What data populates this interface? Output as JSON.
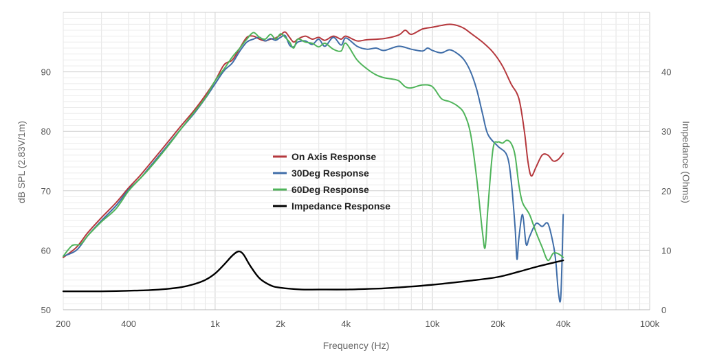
{
  "chart_data": {
    "type": "line",
    "title": "",
    "xlabel": "Frequency (Hz)",
    "ylabel": "dB SPL (2.83V/1m)",
    "y2label": "Impedance (Ohms)",
    "x_scale": "log",
    "xlim": [
      200,
      100000
    ],
    "ylim": [
      50,
      100
    ],
    "y2lim": [
      0,
      50
    ],
    "grid": true,
    "legend_position": "center-left",
    "x_ticks": [
      {
        "value": 200,
        "label": "200"
      },
      {
        "value": 400,
        "label": "400"
      },
      {
        "value": 1000,
        "label": "1k"
      },
      {
        "value": 2000,
        "label": "2k"
      },
      {
        "value": 4000,
        "label": "4k"
      },
      {
        "value": 10000,
        "label": "10k"
      },
      {
        "value": 20000,
        "label": "20k"
      },
      {
        "value": 40000,
        "label": "40k"
      },
      {
        "value": 100000,
        "label": "100k"
      }
    ],
    "y_ticks": [
      {
        "value": 50,
        "label": "50"
      },
      {
        "value": 60,
        "label": "60"
      },
      {
        "value": 70,
        "label": "70"
      },
      {
        "value": 80,
        "label": "80"
      },
      {
        "value": 90,
        "label": "90"
      }
    ],
    "y2_ticks": [
      {
        "value": 0,
        "label": "0"
      },
      {
        "value": 10,
        "label": "10"
      },
      {
        "value": 20,
        "label": "20"
      },
      {
        "value": 30,
        "label": "30"
      },
      {
        "value": 40,
        "label": "40"
      }
    ],
    "series": [
      {
        "name": "On Axis Response",
        "color": "#b5383d",
        "axis": "left",
        "points": [
          [
            200,
            58.8
          ],
          [
            230,
            60.5
          ],
          [
            260,
            63
          ],
          [
            300,
            65.5
          ],
          [
            350,
            68
          ],
          [
            400,
            70.5
          ],
          [
            450,
            72.5
          ],
          [
            500,
            74.5
          ],
          [
            600,
            78
          ],
          [
            700,
            81
          ],
          [
            800,
            83.5
          ],
          [
            900,
            86
          ],
          [
            1000,
            88.5
          ],
          [
            1100,
            91.2
          ],
          [
            1200,
            92
          ],
          [
            1300,
            94
          ],
          [
            1400,
            95.8
          ],
          [
            1500,
            96
          ],
          [
            1600,
            95.5
          ],
          [
            1700,
            95.2
          ],
          [
            1800,
            95.5
          ],
          [
            1900,
            95.7
          ],
          [
            2000,
            96.2
          ],
          [
            2100,
            96.7
          ],
          [
            2200,
            95.8
          ],
          [
            2300,
            95
          ],
          [
            2400,
            95.5
          ],
          [
            2600,
            96
          ],
          [
            2800,
            95.5
          ],
          [
            3000,
            95.8
          ],
          [
            3200,
            95.3
          ],
          [
            3500,
            96
          ],
          [
            3800,
            95.5
          ],
          [
            4000,
            96
          ],
          [
            4500,
            95.2
          ],
          [
            5000,
            95.4
          ],
          [
            6000,
            95.6
          ],
          [
            7000,
            96.2
          ],
          [
            7500,
            97
          ],
          [
            8000,
            96.3
          ],
          [
            9000,
            97.2
          ],
          [
            10000,
            97.5
          ],
          [
            11000,
            97.8
          ],
          [
            12000,
            98
          ],
          [
            13000,
            97.8
          ],
          [
            14000,
            97.3
          ],
          [
            15000,
            96.5
          ],
          [
            17000,
            95
          ],
          [
            19000,
            93.3
          ],
          [
            21000,
            91
          ],
          [
            23000,
            88
          ],
          [
            25000,
            85.5
          ],
          [
            26500,
            80
          ],
          [
            27500,
            75
          ],
          [
            28500,
            72.5
          ],
          [
            30000,
            74
          ],
          [
            32000,
            76
          ],
          [
            34000,
            76
          ],
          [
            36000,
            75
          ],
          [
            38000,
            75.3
          ],
          [
            40000,
            76.3
          ]
        ]
      },
      {
        "name": "30Deg Response",
        "color": "#3f6da8",
        "axis": "left",
        "points": [
          [
            200,
            59
          ],
          [
            230,
            60
          ],
          [
            260,
            62.5
          ],
          [
            300,
            65
          ],
          [
            350,
            67.5
          ],
          [
            400,
            70.2
          ],
          [
            450,
            72
          ],
          [
            500,
            74
          ],
          [
            600,
            77.5
          ],
          [
            700,
            80.5
          ],
          [
            800,
            83
          ],
          [
            900,
            85.5
          ],
          [
            1000,
            88
          ],
          [
            1100,
            90.2
          ],
          [
            1200,
            91.5
          ],
          [
            1300,
            93.5
          ],
          [
            1400,
            95
          ],
          [
            1500,
            95.5
          ],
          [
            1600,
            95.8
          ],
          [
            1700,
            95.2
          ],
          [
            1800,
            95.6
          ],
          [
            1900,
            95.3
          ],
          [
            2000,
            95.8
          ],
          [
            2100,
            96.1
          ],
          [
            2200,
            94.5
          ],
          [
            2300,
            94.2
          ],
          [
            2400,
            95
          ],
          [
            2600,
            95.2
          ],
          [
            2800,
            94.6
          ],
          [
            3000,
            95.5
          ],
          [
            3200,
            94.3
          ],
          [
            3500,
            95.8
          ],
          [
            3800,
            94.5
          ],
          [
            4000,
            95.7
          ],
          [
            4500,
            94.3
          ],
          [
            5000,
            93.8
          ],
          [
            5500,
            94
          ],
          [
            6000,
            93.6
          ],
          [
            7000,
            94.3
          ],
          [
            8000,
            93.8
          ],
          [
            9000,
            93.5
          ],
          [
            9500,
            94
          ],
          [
            10000,
            93.6
          ],
          [
            11000,
            93.2
          ],
          [
            12000,
            93.7
          ],
          [
            13000,
            93.1
          ],
          [
            14000,
            92
          ],
          [
            15000,
            90
          ],
          [
            16000,
            87
          ],
          [
            17000,
            83
          ],
          [
            18000,
            79.5
          ],
          [
            20000,
            77.5
          ],
          [
            22000,
            76
          ],
          [
            23000,
            72
          ],
          [
            24000,
            64
          ],
          [
            24500,
            58.5
          ],
          [
            25000,
            62
          ],
          [
            26000,
            66
          ],
          [
            27000,
            61
          ],
          [
            28000,
            62.3
          ],
          [
            30000,
            64.5
          ],
          [
            32000,
            64
          ],
          [
            34000,
            64.5
          ],
          [
            36000,
            61
          ],
          [
            37000,
            58
          ],
          [
            38000,
            53
          ],
          [
            39000,
            52.3
          ],
          [
            40000,
            66
          ]
        ]
      },
      {
        "name": "60Deg Response",
        "color": "#4fb45a",
        "axis": "left",
        "points": [
          [
            200,
            59
          ],
          [
            220,
            60.8
          ],
          [
            240,
            61
          ],
          [
            260,
            62.5
          ],
          [
            300,
            64.8
          ],
          [
            350,
            67
          ],
          [
            400,
            70
          ],
          [
            450,
            72
          ],
          [
            500,
            73.8
          ],
          [
            600,
            77.3
          ],
          [
            700,
            80.5
          ],
          [
            800,
            83.2
          ],
          [
            900,
            85.6
          ],
          [
            1000,
            88.5
          ],
          [
            1100,
            90.5
          ],
          [
            1200,
            92.5
          ],
          [
            1300,
            94
          ],
          [
            1400,
            95.5
          ],
          [
            1500,
            96.6
          ],
          [
            1600,
            95.8
          ],
          [
            1700,
            95.5
          ],
          [
            1800,
            96.3
          ],
          [
            1900,
            95.5
          ],
          [
            2000,
            96.4
          ],
          [
            2100,
            95.8
          ],
          [
            2200,
            95
          ],
          [
            2300,
            94
          ],
          [
            2400,
            95.5
          ],
          [
            2600,
            95
          ],
          [
            2800,
            94.8
          ],
          [
            3000,
            94.2
          ],
          [
            3200,
            94.8
          ],
          [
            3500,
            93.8
          ],
          [
            3800,
            93.5
          ],
          [
            4000,
            94.8
          ],
          [
            4500,
            92
          ],
          [
            5000,
            90.5
          ],
          [
            5500,
            89.5
          ],
          [
            6000,
            89
          ],
          [
            6500,
            88.8
          ],
          [
            7000,
            88.5
          ],
          [
            7500,
            87.5
          ],
          [
            8000,
            87.3
          ],
          [
            9000,
            87.8
          ],
          [
            10000,
            87.5
          ],
          [
            11000,
            85.5
          ],
          [
            12000,
            85
          ],
          [
            13000,
            84.3
          ],
          [
            14000,
            83
          ],
          [
            15000,
            79.5
          ],
          [
            16000,
            72
          ],
          [
            17000,
            63
          ],
          [
            17500,
            60.5
          ],
          [
            18000,
            67
          ],
          [
            19000,
            77
          ],
          [
            20000,
            78.2
          ],
          [
            21000,
            78
          ],
          [
            22000,
            78.5
          ],
          [
            23000,
            78
          ],
          [
            24000,
            76
          ],
          [
            25000,
            71
          ],
          [
            26000,
            68
          ],
          [
            28000,
            66
          ],
          [
            30000,
            63
          ],
          [
            32000,
            60.5
          ],
          [
            34000,
            58.3
          ],
          [
            36000,
            59.5
          ],
          [
            38000,
            59.4
          ],
          [
            40000,
            58.8
          ]
        ]
      },
      {
        "name": "Impedance Response",
        "color": "#000000",
        "axis": "right",
        "points": [
          [
            200,
            3.1
          ],
          [
            300,
            3.1
          ],
          [
            400,
            3.2
          ],
          [
            500,
            3.3
          ],
          [
            600,
            3.5
          ],
          [
            700,
            3.8
          ],
          [
            800,
            4.3
          ],
          [
            900,
            5
          ],
          [
            1000,
            6.1
          ],
          [
            1100,
            7.6
          ],
          [
            1200,
            9.1
          ],
          [
            1280,
            9.8
          ],
          [
            1350,
            9.3
          ],
          [
            1450,
            7.4
          ],
          [
            1600,
            5.3
          ],
          [
            1800,
            4.1
          ],
          [
            2000,
            3.7
          ],
          [
            2500,
            3.4
          ],
          [
            3000,
            3.4
          ],
          [
            4000,
            3.4
          ],
          [
            5000,
            3.5
          ],
          [
            6000,
            3.6
          ],
          [
            8000,
            3.9
          ],
          [
            10000,
            4.2
          ],
          [
            12000,
            4.5
          ],
          [
            15000,
            4.9
          ],
          [
            20000,
            5.5
          ],
          [
            25000,
            6.4
          ],
          [
            30000,
            7.2
          ],
          [
            35000,
            7.8
          ],
          [
            40000,
            8.3
          ]
        ]
      }
    ]
  }
}
